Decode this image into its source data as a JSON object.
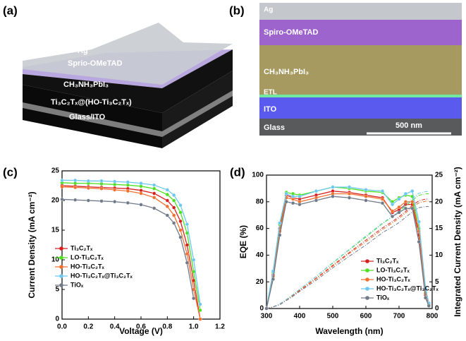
{
  "panels": {
    "a": {
      "label": "(a)",
      "layers": [
        "Ag",
        "Sprio-OMeTAD",
        "CH₃NH₃PbI₃",
        "Ti₃C₂Tₓ@(HO-Ti₃C₂Tₓ)",
        "Glass/ITO"
      ]
    },
    "b": {
      "label": "(b)",
      "layers": [
        "Ag",
        "Spiro-OMeTAD",
        "CH₃NH₃PbI₃",
        "ETL",
        "ITO",
        "Glass"
      ],
      "scale_bar": "500 nm"
    }
  },
  "chart_data": [
    {
      "type": "line",
      "panel_label": "(c)",
      "xlabel": "Voltage (V)",
      "ylabel": "Current Density (mA cm⁻²)",
      "x": [
        0,
        0.1,
        0.2,
        0.3,
        0.4,
        0.5,
        0.6,
        0.7,
        0.8,
        0.85,
        0.9,
        0.95,
        1.0,
        1.05
      ],
      "xlim": [
        0,
        1.2
      ],
      "xticks": [
        {
          "value": 0,
          "label": "0.0"
        },
        0.2,
        0.4,
        0.6,
        0.8,
        {
          "value": 1,
          "label": "1.0"
        },
        1.2
      ],
      "ylim": [
        0,
        25
      ],
      "yticks": [
        0,
        5,
        10,
        15,
        20,
        25
      ],
      "series": [
        {
          "name": "Ti₃C₂Tₓ",
          "color": "#d62020",
          "values": [
            22.5,
            22.4,
            22.3,
            22.2,
            22.1,
            22.0,
            21.7,
            21.2,
            20.0,
            18.8,
            16.5,
            12.5,
            6.5,
            0
          ]
        },
        {
          "name": "LO-Ti₃C₂Tₓ",
          "color": "#4ee020",
          "values": [
            23.0,
            22.9,
            22.9,
            22.8,
            22.7,
            22.6,
            22.4,
            22.0,
            21.0,
            20.0,
            18.0,
            14.5,
            8.0,
            1.5
          ]
        },
        {
          "name": "HO-Ti₃C₂Tₓ",
          "color": "#f07030",
          "values": [
            22.3,
            22.2,
            22.1,
            22.0,
            21.8,
            21.6,
            21.2,
            20.5,
            19.0,
            17.5,
            15.0,
            11.0,
            5.0,
            0
          ]
        },
        {
          "name": "HO-Ti₃C₂Tₓ@Ti₃C₂Tₓ",
          "color": "#6cc8f0",
          "values": [
            23.4,
            23.4,
            23.3,
            23.3,
            23.2,
            23.1,
            22.9,
            22.6,
            21.8,
            20.9,
            19.2,
            16.0,
            10.0,
            2.5
          ]
        },
        {
          "name": "TiOₓ",
          "color": "#707a88",
          "values": [
            20.2,
            20.1,
            20.0,
            19.9,
            19.8,
            19.6,
            19.3,
            18.7,
            17.5,
            16.2,
            13.8,
            9.5,
            3.5,
            null
          ]
        }
      ]
    },
    {
      "type": "line",
      "panel_label": "(d)",
      "xlabel": "Wavelength (nm)",
      "ylabel": "EQE (%)",
      "y2label": "Integrated Current Density (mA cm⁻²)",
      "x": [
        300,
        320,
        340,
        360,
        380,
        400,
        450,
        500,
        550,
        600,
        650,
        680,
        700,
        720,
        740,
        760,
        780,
        790
      ],
      "xlim": [
        300,
        800
      ],
      "xticks": [
        300,
        400,
        500,
        600,
        700,
        800
      ],
      "ylim": [
        0,
        100
      ],
      "yticks": [
        0,
        20,
        40,
        60,
        80,
        100
      ],
      "y2lim": [
        0,
        25
      ],
      "y2ticks": [
        0,
        5,
        10,
        15,
        20,
        25
      ],
      "series": [
        {
          "name": "Ti₃C₂Tₓ",
          "color": "#d62020",
          "values": [
            0,
            25,
            60,
            85,
            83,
            82,
            85,
            88,
            87,
            85,
            83,
            72,
            74,
            78,
            78,
            55,
            10,
            3
          ],
          "integrated": [
            0,
            0.3,
            0.8,
            1.6,
            2.5,
            3.4,
            5.7,
            8.1,
            10.5,
            12.8,
            15.1,
            16.3,
            17.2,
            18.2,
            19.3,
            20.2,
            20.5,
            20.5
          ]
        },
        {
          "name": "LO-Ti₃C₂Tₓ",
          "color": "#4ee020",
          "values": [
            0,
            27,
            63,
            87,
            86,
            85,
            88,
            91,
            90,
            88,
            87,
            80,
            83,
            85,
            84,
            60,
            12,
            3
          ],
          "integrated": [
            0,
            0.3,
            0.8,
            1.7,
            2.6,
            3.6,
            6.0,
            8.5,
            11.0,
            13.4,
            15.9,
            17.2,
            18.1,
            19.2,
            20.3,
            21.2,
            21.5,
            21.5
          ]
        },
        {
          "name": "HO-Ti₃C₂Tₓ",
          "color": "#f07030",
          "values": [
            0,
            24,
            58,
            83,
            82,
            80,
            83,
            86,
            86,
            84,
            82,
            73,
            76,
            80,
            80,
            58,
            11,
            3
          ],
          "integrated": [
            0,
            0.3,
            0.8,
            1.6,
            2.4,
            3.3,
            5.6,
            7.9,
            10.3,
            12.5,
            14.8,
            16.0,
            16.9,
            17.9,
            19.0,
            19.8,
            20.1,
            20.1
          ]
        },
        {
          "name": "HO-Ti₃C₂Tₓ@Ti₃C₂Tₓ",
          "color": "#6cc8f0",
          "values": [
            0,
            28,
            64,
            86,
            84,
            84,
            88,
            91,
            91,
            89,
            88,
            78,
            82,
            86,
            88,
            65,
            15,
            4
          ],
          "integrated": [
            0,
            0.3,
            0.9,
            1.7,
            2.6,
            3.6,
            6.0,
            8.6,
            11.1,
            13.6,
            16.0,
            17.3,
            18.3,
            19.4,
            20.6,
            21.6,
            21.9,
            21.9
          ]
        },
        {
          "name": "TiOₓ",
          "color": "#707a88",
          "values": [
            0,
            22,
            55,
            80,
            79,
            78,
            81,
            84,
            83,
            81,
            79,
            69,
            72,
            75,
            75,
            50,
            8,
            2
          ],
          "integrated": [
            0,
            0.3,
            0.7,
            1.5,
            2.3,
            3.2,
            5.3,
            7.6,
            9.8,
            11.9,
            14.2,
            15.3,
            16.1,
            17.1,
            18.1,
            18.9,
            19.1,
            19.1
          ]
        }
      ]
    }
  ]
}
